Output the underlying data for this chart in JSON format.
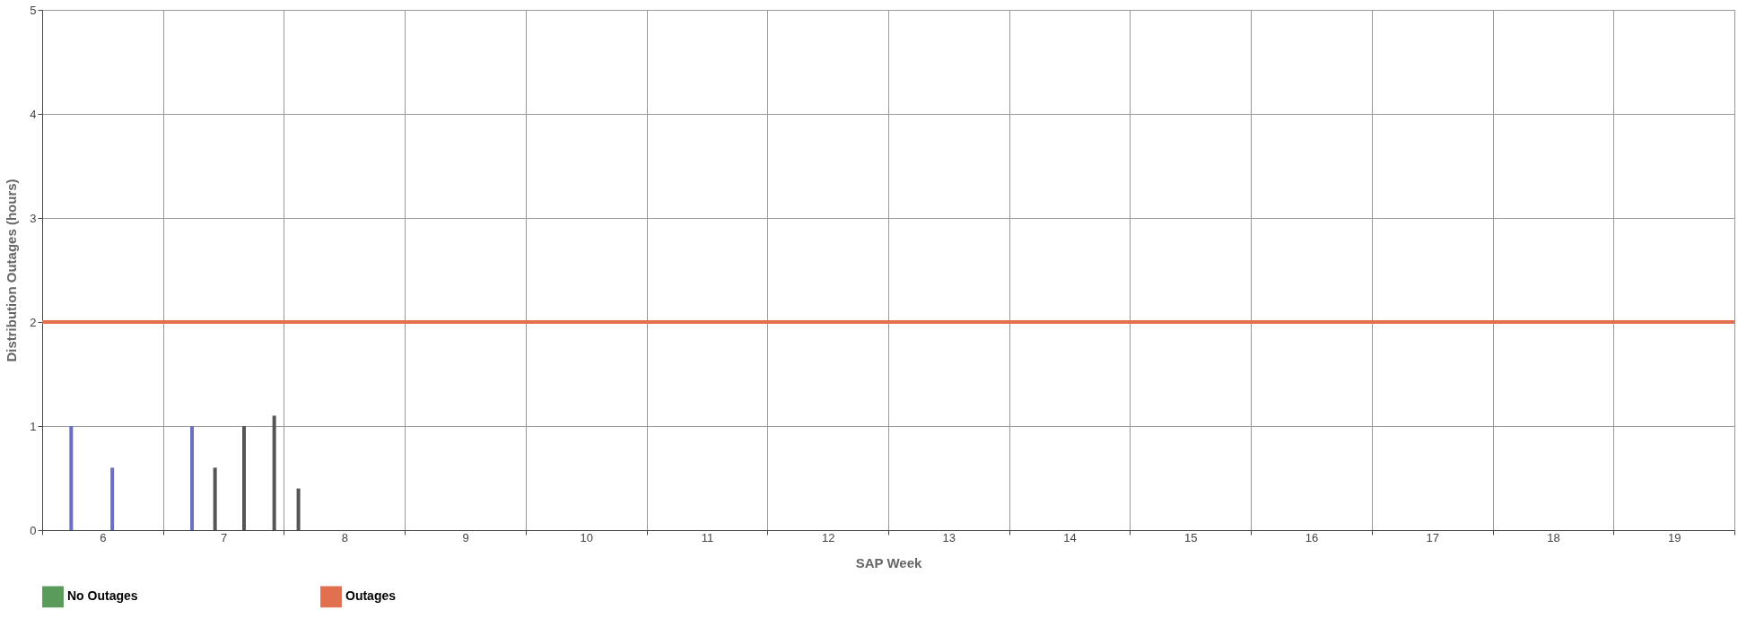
{
  "chart_data": {
    "type": "bar",
    "xlabel": "SAP Week",
    "ylabel": "Distribution Outages (hours)",
    "xlim": [
      5.5,
      19.5
    ],
    "xticks": [
      {
        "value": 5.5,
        "label": null
      },
      6,
      {
        "value": 6.5,
        "label": null
      },
      7,
      {
        "value": 7.5,
        "label": null
      },
      8,
      {
        "value": 8.5,
        "label": null
      },
      9,
      {
        "value": 9.5,
        "label": null
      },
      10,
      {
        "value": 10.5,
        "label": null
      },
      11,
      {
        "value": 11.5,
        "label": null
      },
      12,
      {
        "value": 12.5,
        "label": null
      },
      13,
      {
        "value": 13.5,
        "label": null
      },
      14,
      {
        "value": 14.5,
        "label": null
      },
      15,
      {
        "value": 15.5,
        "label": null
      },
      16,
      {
        "value": 16.5,
        "label": null
      },
      17,
      {
        "value": 17.5,
        "label": null
      },
      18,
      {
        "value": 18.5,
        "label": null
      },
      19,
      {
        "value": 19.5,
        "label": null
      }
    ],
    "ylim": [
      0,
      5
    ],
    "yticks": [
      0,
      1,
      2,
      3,
      4,
      5
    ],
    "grid": true,
    "legend": "bottom",
    "series": [
      {
        "x": [
          5.74,
          6.08,
          6.74,
          6.93,
          7.17,
          7.42,
          7.62
        ],
        "values": [
          1.0,
          0.6,
          1.0,
          0.6,
          1.0,
          1.1,
          0.4
        ],
        "colors": [
          "#6b6fc4",
          "#6b6fc4",
          "#6b6fc4",
          "#555555",
          "#555555",
          "#555555",
          "#555555"
        ]
      },
      {
        "name": "No Outages",
        "type": "bar",
        "color": "#5a9a5a"
      },
      {
        "name": "Outages",
        "type": "line",
        "color": "#e07050",
        "x": [
          5.5,
          19.5
        ],
        "values": [
          2,
          2
        ]
      }
    ]
  }
}
